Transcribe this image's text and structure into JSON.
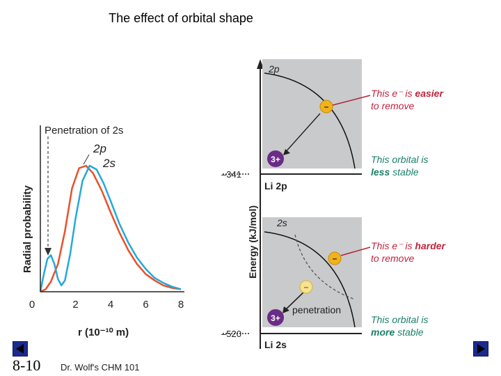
{
  "slide": {
    "title": "The effect of orbital shape",
    "slide_number": "8-10",
    "credit": "Dr. Wolf's CHM 101",
    "nav": {
      "prev_icon": "triangle-left-icon",
      "next_icon": "triangle-right-icon"
    }
  },
  "chart_data": {
    "type": "line",
    "title": "Penetration of 2s",
    "xlabel": "r (10⁻¹⁰ m)",
    "ylabel": "Radial probability",
    "xlim": [
      0,
      8
    ],
    "ylim": [
      0,
      1
    ],
    "x_ticks": [
      "0",
      "2",
      "4",
      "6",
      "8"
    ],
    "series": [
      {
        "name": "2p",
        "color": "#e8502a",
        "x": [
          0,
          0.3,
          0.6,
          1.0,
          1.4,
          1.8,
          2.2,
          2.6,
          3.0,
          3.5,
          4.0,
          4.5,
          5.0,
          5.5,
          6.0,
          6.5,
          7.0,
          7.5,
          8.0
        ],
        "y": [
          0.0,
          0.02,
          0.08,
          0.22,
          0.48,
          0.82,
          0.98,
          1.0,
          0.94,
          0.8,
          0.63,
          0.47,
          0.33,
          0.22,
          0.14,
          0.09,
          0.05,
          0.03,
          0.02
        ]
      },
      {
        "name": "2s",
        "color": "#25a8d8",
        "x": [
          0,
          0.2,
          0.4,
          0.6,
          0.8,
          1.0,
          1.2,
          1.4,
          1.7,
          2.0,
          2.4,
          2.8,
          3.2,
          3.6,
          4.0,
          4.5,
          5.0,
          5.5,
          6.0,
          6.5,
          7.0,
          7.5,
          8.0
        ],
        "y": [
          0.0,
          0.14,
          0.26,
          0.29,
          0.22,
          0.1,
          0.05,
          0.09,
          0.3,
          0.58,
          0.88,
          1.0,
          0.97,
          0.86,
          0.72,
          0.54,
          0.39,
          0.27,
          0.18,
          0.11,
          0.07,
          0.04,
          0.02
        ]
      }
    ],
    "annotations": [
      "Penetration of 2s"
    ]
  },
  "energy_diagram": {
    "axis_label": "Energy (kJ/mol)",
    "levels": [
      {
        "value": "–341",
        "label": "Li 2p",
        "orbital": "2p",
        "electron": "–",
        "nucleus": "3+",
        "note_color_text": "This e⁻ is ",
        "note_emphasis": "easier",
        "note_rest": "to remove",
        "stability_line1": "This orbital is",
        "stability_emphasis": "less",
        "stability_rest": " stable"
      },
      {
        "value": "–520",
        "label": "Li 2s",
        "orbital": "2s",
        "electron": "–",
        "nucleus": "3+",
        "note_color_text": "This e⁻ is ",
        "note_emphasis": "harder",
        "note_rest": "to remove",
        "stability_line1": "This orbital is",
        "stability_emphasis": "more",
        "stability_rest": " stable",
        "penetration_label": "penetration"
      }
    ]
  }
}
